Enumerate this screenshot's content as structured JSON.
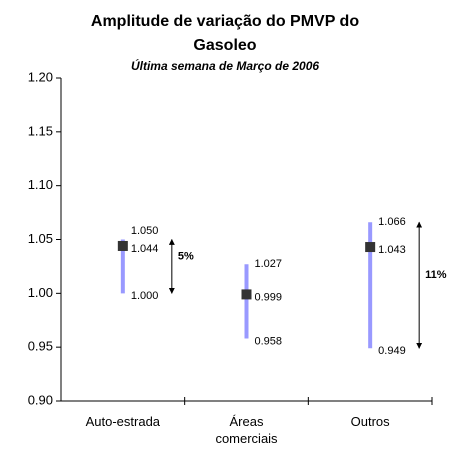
{
  "chart_data": {
    "type": "range",
    "title": "Amplitude de variação do PMVP do Gasoleo",
    "subtitle": "Última semana de Março de 2006",
    "categories": [
      "Auto-estrada",
      "Áreas comerciais",
      "Outros"
    ],
    "series": [
      {
        "color": "#9999ff",
        "values": [
          1.05,
          1.027,
          1.066
        ],
        "value_labels": [
          "1.050",
          "1.027",
          "1.066"
        ]
      },
      {
        "color": "#333333",
        "values": [
          1.044,
          0.999,
          1.043
        ],
        "value_labels": [
          "1.044",
          "0.999",
          "1.043"
        ]
      },
      {
        "color": "#9999ff",
        "values": [
          1.0,
          0.958,
          0.949
        ],
        "value_labels": [
          "1.000",
          "0.958",
          "0.949"
        ]
      }
    ],
    "range_labels": [
      "5%",
      null,
      "11%"
    ],
    "ylim": [
      0.9,
      1.2
    ],
    "yticks": [
      {
        "value": 0.9,
        "label": "0.90"
      },
      {
        "value": 0.95,
        "label": "0.95"
      },
      {
        "value": 1.0,
        "label": "1.00"
      },
      {
        "value": 1.05,
        "label": "1.05"
      },
      {
        "value": 1.1,
        "label": "1.10"
      },
      {
        "value": 1.15,
        "label": "1.15"
      },
      {
        "value": 1.2,
        "label": "1.20"
      }
    ],
    "grid": false
  }
}
